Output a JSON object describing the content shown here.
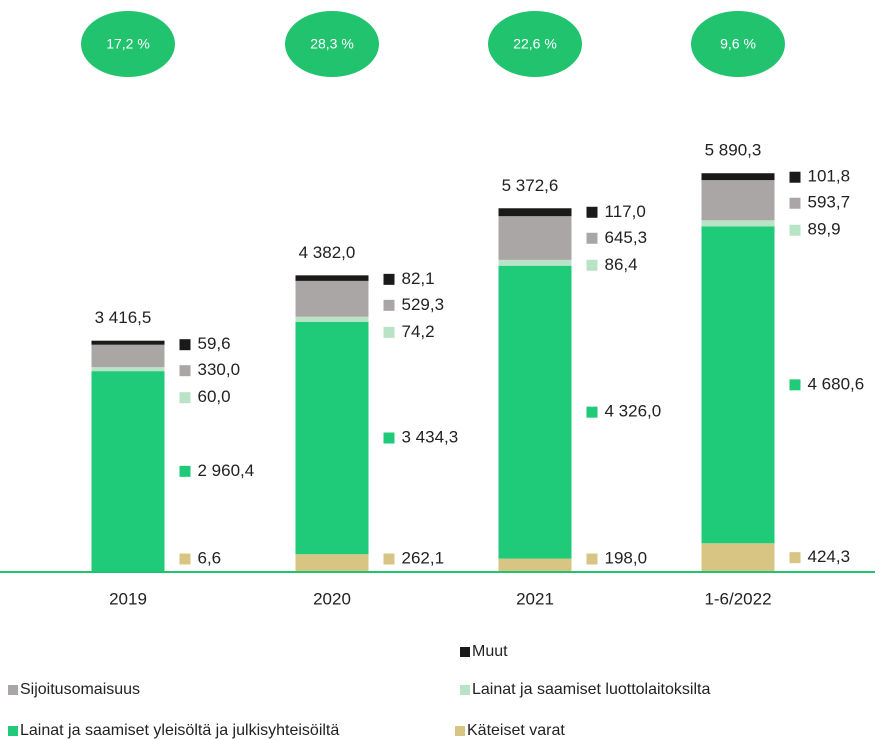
{
  "chart_data": {
    "type": "stacked_bar",
    "categories": [
      "2019",
      "2020",
      "2021",
      "1-6/2022"
    ],
    "series": [
      {
        "name": "Käteiset varat",
        "color": "#d9c583",
        "values": [
          6.6,
          262.1,
          198.0,
          424.3
        ],
        "value_labels": [
          "6,6",
          "262,1",
          "198,0",
          "424,3"
        ]
      },
      {
        "name": "Lainat ja saamiset yleisöltä ja julkisyhteisöiltä",
        "color": "#1fca78",
        "values": [
          2960.4,
          3434.3,
          4326.0,
          4680.6
        ],
        "value_labels": [
          "2 960,4",
          "3 434,3",
          "4 326,0",
          "4 680,6"
        ]
      },
      {
        "name": "Lainat ja saamiset luottolaitoksilta",
        "color": "#b8e3c6",
        "values": [
          60.0,
          74.2,
          86.4,
          89.9
        ],
        "value_labels": [
          "60,0",
          "74,2",
          "86,4",
          "89,9"
        ]
      },
      {
        "name": "Sijoitusomaisuus",
        "color": "#aba6a6",
        "values": [
          330.0,
          529.3,
          645.3,
          593.7
        ],
        "value_labels": [
          "330,0",
          "529,3",
          "645,3",
          "593,7"
        ]
      },
      {
        "name": "Muut",
        "color": "#1a1a1a",
        "values": [
          59.6,
          82.1,
          117.0,
          101.8
        ],
        "value_labels": [
          "59,6",
          "82,1",
          "117,0",
          "101,8"
        ]
      }
    ],
    "totals": [
      3416.5,
      4382.0,
      5372.6,
      5890.3
    ],
    "total_labels": [
      "3 416,5",
      "4 382,0",
      "5 372,6",
      "5 890,3"
    ],
    "growth": [
      17.2,
      28.3,
      22.6,
      9.6
    ],
    "growth_labels": [
      "17,2 %",
      "28,3 %",
      "22,6 %",
      "9,6 %"
    ],
    "growth_color": "#22c36f"
  }
}
